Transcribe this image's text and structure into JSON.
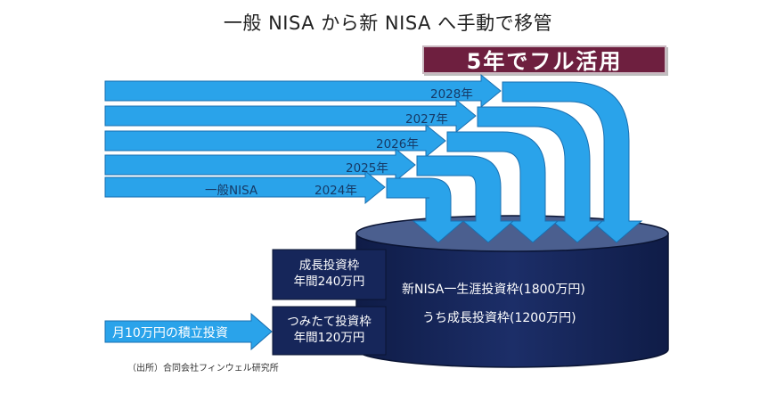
{
  "title": "一般 NISA から新 NISA へ手動で移管",
  "banner": "5年でフル活用",
  "rows": [
    {
      "year": "2028年"
    },
    {
      "year": "2027年"
    },
    {
      "year": "2026年"
    },
    {
      "year": "2025年"
    },
    {
      "year": "2024年"
    }
  ],
  "general_nisa_label": "一般NISA",
  "growth_box": {
    "line1": "成長投資枠",
    "line2": "年間240万円"
  },
  "tsumitate_box": {
    "line1": "つみたて投資枠",
    "line2": "年間120万円"
  },
  "monthly_input": "月10万円の積立投資",
  "tank": {
    "line1": "新NISA一生涯投資枠(1800万円)",
    "line2": "うち成長投資枠(1200万円)"
  },
  "source": "（出所）合同会社フィンウェル研究所",
  "colors": {
    "arrow_fill": "#2aa3ea",
    "arrow_stroke": "#1a6fb0",
    "tank_body": "#16265a",
    "tank_top": "#4b5f8f",
    "box_fill": "#16265a",
    "banner_fill": "#6e1f3f"
  }
}
